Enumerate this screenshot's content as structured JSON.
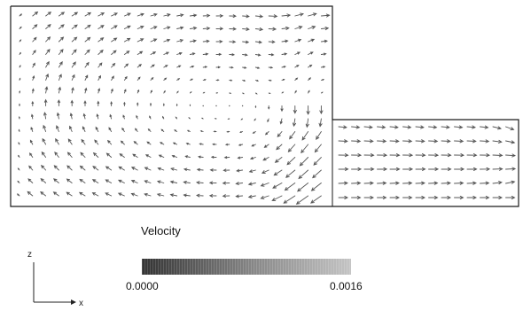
{
  "legend": {
    "title": "Velocity",
    "min_label": "0.0000",
    "max_label": "0.0016",
    "range": [
      0.0,
      0.0016
    ],
    "gradient": [
      "#3a3a3a",
      "#bdbdbd"
    ]
  },
  "axes": {
    "vertical_label": "z",
    "horizontal_label": "x"
  },
  "colors": {
    "outline": "#1a1a1a",
    "arrow": "#555555",
    "background": "#ffffff"
  }
}
